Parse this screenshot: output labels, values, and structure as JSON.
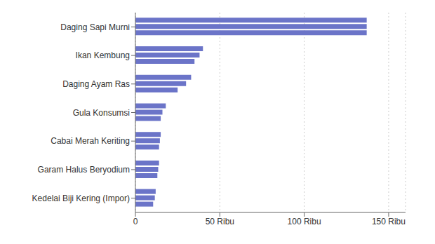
{
  "chart_data": {
    "type": "bar",
    "orientation": "horizontal",
    "categories": [
      "Daging Sapi Murni",
      "Ikan Kembung",
      "Daging Ayam Ras",
      "Gula Konsumsi",
      "Cabai Merah Keriting",
      "Garam Halus Beryodium",
      "Kedelai Biji Kering (Impor)"
    ],
    "series": [
      {
        "color": "#6B74C8",
        "values": [
          137000,
          40000,
          33000,
          18000,
          15000,
          14000,
          12000
        ]
      },
      {
        "color": "#6B74C8",
        "values": [
          137000,
          38000,
          30000,
          16000,
          14500,
          13500,
          11500
        ]
      },
      {
        "color": "#6B74C8",
        "values": [
          137000,
          35000,
          25000,
          15000,
          14000,
          13000,
          10500
        ]
      }
    ],
    "xlim": [
      0,
      160000
    ],
    "xticks": [
      0,
      {
        "value": 50000,
        "label": "50 Ribu"
      },
      {
        "value": 100000,
        "label": "100 Ribu"
      },
      {
        "value": 150000,
        "label": "150 Ribu"
      }
    ],
    "grid": true
  }
}
